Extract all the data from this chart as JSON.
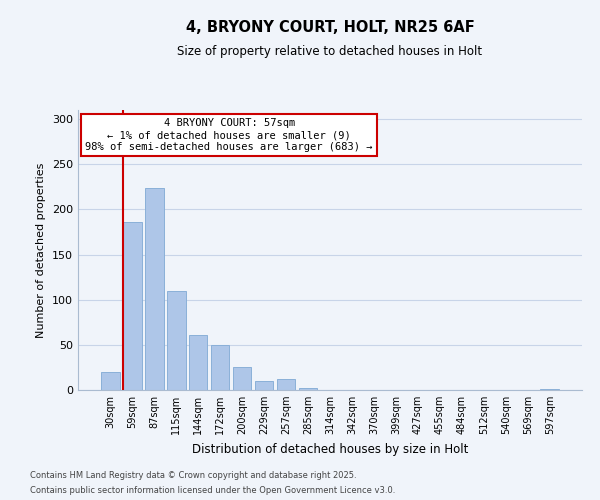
{
  "title": "4, BRYONY COURT, HOLT, NR25 6AF",
  "subtitle": "Size of property relative to detached houses in Holt",
  "xlabel": "Distribution of detached houses by size in Holt",
  "ylabel": "Number of detached properties",
  "bar_labels": [
    "30sqm",
    "59sqm",
    "87sqm",
    "115sqm",
    "144sqm",
    "172sqm",
    "200sqm",
    "229sqm",
    "257sqm",
    "285sqm",
    "314sqm",
    "342sqm",
    "370sqm",
    "399sqm",
    "427sqm",
    "455sqm",
    "484sqm",
    "512sqm",
    "540sqm",
    "569sqm",
    "597sqm"
  ],
  "bar_values": [
    20,
    186,
    224,
    110,
    61,
    50,
    26,
    10,
    12,
    2,
    0,
    0,
    0,
    0,
    0,
    0,
    0,
    0,
    0,
    0,
    1
  ],
  "bar_color": "#aec6e8",
  "bar_edge_color": "#8ab0d8",
  "marker_line_color": "#cc0000",
  "ylim": [
    0,
    310
  ],
  "yticks": [
    0,
    50,
    100,
    150,
    200,
    250,
    300
  ],
  "annotation_title": "4 BRYONY COURT: 57sqm",
  "annotation_line1": "← 1% of detached houses are smaller (9)",
  "annotation_line2": "98% of semi-detached houses are larger (683) →",
  "annotation_box_color": "#ffffff",
  "annotation_box_edge": "#cc0000",
  "footer_line1": "Contains HM Land Registry data © Crown copyright and database right 2025.",
  "footer_line2": "Contains public sector information licensed under the Open Government Licence v3.0.",
  "background_color": "#f0f4fa",
  "grid_color": "#c8d4e8"
}
